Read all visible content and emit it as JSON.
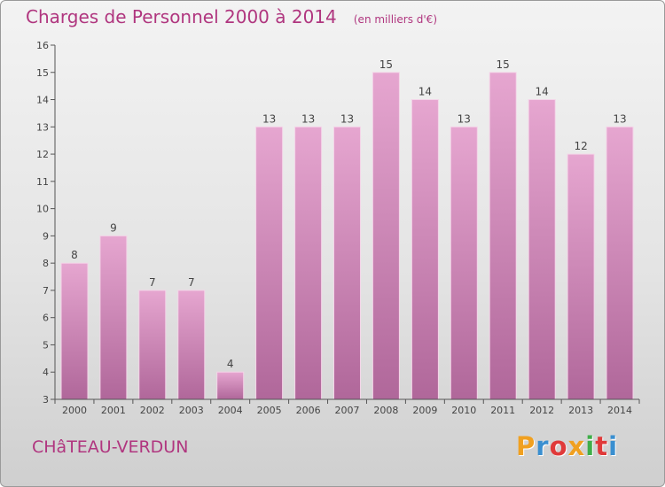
{
  "title": "Charges de Personnel 2000 à 2014",
  "unit_note": "(en milliers d'€)",
  "commune": "CHâTEAU-VERDUN",
  "logo": {
    "letters": [
      "P",
      "r",
      "o",
      "x",
      "i",
      "t",
      "i"
    ],
    "colors": [
      "#f0a020",
      "#3a8fd0",
      "#e03a3a",
      "#f0a020",
      "#3fae49",
      "#e03a3a",
      "#3a8fd0"
    ]
  },
  "colors": {
    "accent": "#b0367f",
    "bar_light": "#e6a6d0",
    "bar_dark": "#b0679a",
    "axis": "#555555"
  },
  "chart_data": {
    "type": "bar",
    "categories": [
      "2000",
      "2001",
      "2002",
      "2003",
      "2004",
      "2005",
      "2006",
      "2007",
      "2008",
      "2009",
      "2010",
      "2011",
      "2012",
      "2013",
      "2014"
    ],
    "values": [
      8,
      9,
      7,
      7,
      4,
      13,
      13,
      13,
      15,
      14,
      13,
      15,
      14,
      12,
      13
    ],
    "data_labels": [
      "8",
      "9",
      "7",
      "7",
      "4",
      "13",
      "13",
      "13",
      "15",
      "14",
      "13",
      "15",
      "14",
      "12",
      "13"
    ],
    "y_ticks": [
      "3",
      "4",
      "5",
      "6",
      "7",
      "8",
      "9",
      "10",
      "11",
      "12",
      "13",
      "14",
      "15",
      "16"
    ],
    "ylim": [
      3,
      16
    ],
    "grid": false,
    "legend": "none",
    "title": "Charges de Personnel 2000 à 2014",
    "xlabel": "",
    "ylabel": ""
  }
}
